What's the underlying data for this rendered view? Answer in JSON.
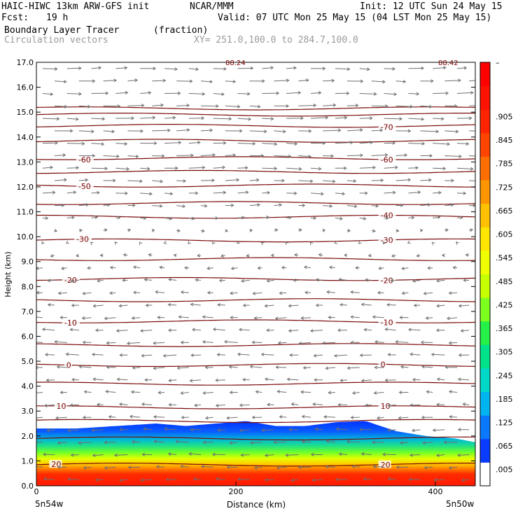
{
  "header": {
    "title": "HAIC-HIWC 13km ARW-GFS init",
    "org": "NCAR/MMM",
    "init": "Init: 12 UTC Sun 24 May 15",
    "fcst_label": "Fcst:",
    "fcst_value": "19 h",
    "valid": "Valid: 07 UTC Mon 25 May 15 (04 LST Mon 25 May 15)",
    "field": "Boundary Layer Tracer",
    "field_unit": "(fraction)",
    "overlay": "Circulation vectors",
    "xy_range": "XY= 251.0,100.0 to 284.7,100.0"
  },
  "chart_data": {
    "type": "heatmap",
    "xlabel": "Distance (km)",
    "ylabel": "Height (km)",
    "xlim": [
      0,
      440
    ],
    "ylim": [
      0,
      17
    ],
    "x_ticks": [
      0,
      200,
      400
    ],
    "y_ticks": [
      "0.0",
      "1.0",
      "2.0",
      "3.0",
      "4.0",
      "5.0",
      "6.0",
      "7.0",
      "8.0",
      "9.0",
      "10.0",
      "11.0",
      "12.0",
      "13.0",
      "14.0",
      "15.0",
      "16.0",
      "17.0"
    ],
    "x_end_labels": [
      "5n54w",
      "5n50w"
    ],
    "top_labels": [
      "88.24",
      "88.42"
    ],
    "colorbar_labels": [
      ".005",
      ".065",
      ".125",
      ".185",
      ".245",
      ".305",
      ".365",
      ".425",
      ".485",
      ".545",
      ".605",
      ".665",
      ".725",
      ".785",
      ".845",
      ".905"
    ],
    "colorbar_top_label": "–",
    "tracer_top_km": {
      "x": [
        0,
        40,
        80,
        120,
        150,
        180,
        210,
        240,
        270,
        300,
        330,
        360,
        390,
        420,
        440
      ],
      "top": [
        2.3,
        2.3,
        2.4,
        2.5,
        2.4,
        2.5,
        2.6,
        2.4,
        2.4,
        2.55,
        2.6,
        2.2,
        2.0,
        1.9,
        1.75
      ]
    },
    "temperature_contours": [
      {
        "label": "20",
        "y_km": 0.85,
        "label_positions_km": [
          15,
          345
        ]
      },
      {
        "label": "10",
        "y_km": 3.15,
        "label_positions_km": [
          20,
          345
        ]
      },
      {
        "label": "0",
        "y_km": 4.85,
        "label_positions_km": [
          30,
          345
        ]
      },
      {
        "label": "-10",
        "y_km": 6.6,
        "label_positions_km": [
          28,
          345
        ]
      },
      {
        "label": "-20",
        "y_km": 8.3,
        "label_positions_km": [
          28,
          345
        ]
      },
      {
        "label": "-30",
        "y_km": 9.85,
        "label_positions_km": [
          40,
          345
        ]
      },
      {
        "label": "-40",
        "y_km": 10.8,
        "label_positions_km": [
          345
        ]
      },
      {
        "label": "-50",
        "y_km": 12.05,
        "label_positions_km": [
          42
        ]
      },
      {
        "label": "-60",
        "y_km": 13.15,
        "label_positions_km": [
          42,
          345
        ]
      },
      {
        "label": "-70",
        "y_km": 14.45,
        "label_positions_km": [
          345
        ]
      }
    ],
    "extra_isotherm_km": [
      1.9,
      2.6,
      4.1,
      5.65,
      7.45,
      9.1,
      11.35,
      12.6,
      13.85,
      14.9,
      15.15
    ],
    "vector_wind_profile_km": {
      "heights": [
        0.5,
        1.5,
        2.5,
        3.5,
        4.5,
        5.5,
        6.5,
        7.5,
        8.5,
        9.5,
        10.5,
        11.5,
        12.5,
        13.5,
        14.5,
        15.5,
        16.5
      ],
      "u": [
        -0.6,
        -0.7,
        -0.6,
        -0.5,
        -0.6,
        -0.7,
        -0.6,
        -0.5,
        -0.4,
        -0.15,
        0.3,
        0.6,
        0.8,
        0.9,
        0.95,
        0.9,
        0.8
      ]
    },
    "grid": false,
    "legend": "colorbar-right"
  }
}
